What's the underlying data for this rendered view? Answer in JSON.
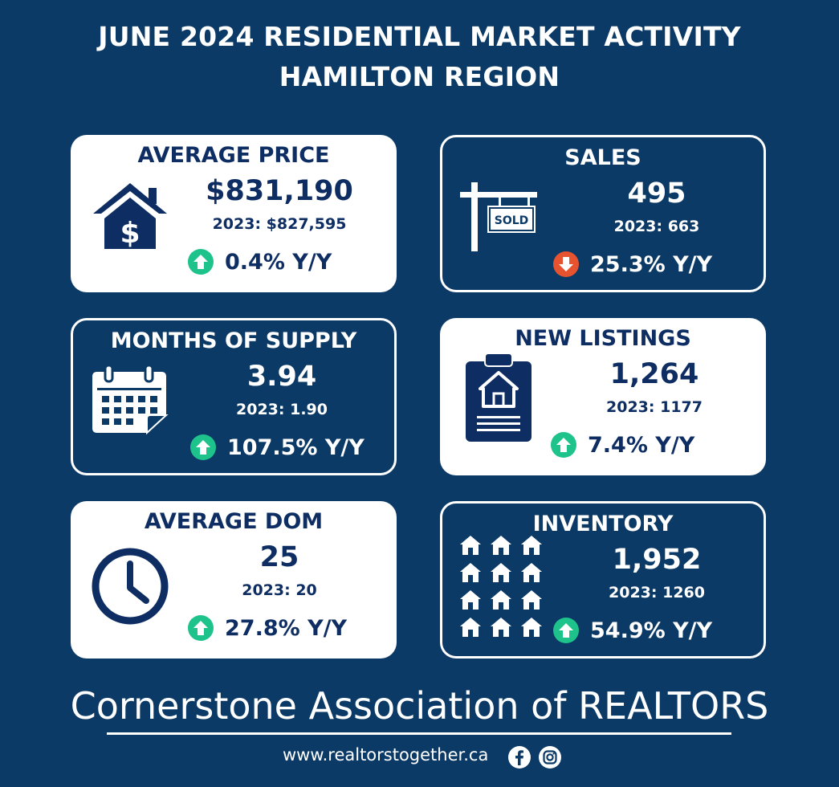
{
  "header": {
    "line1": "JUNE 2024 RESIDENTIAL MARKET ACTIVITY",
    "line2": "HAMILTON REGION"
  },
  "colors": {
    "background": "#0c3a66",
    "text_dark": "#0e2e63",
    "up_arrow": "#1ec28b",
    "down_arrow": "#e8532f"
  },
  "cards": {
    "average_price": {
      "title": "AVERAGE PRICE",
      "value": "$831,190",
      "previous": "2023: $827,595",
      "change": "0.4% Y/Y",
      "direction": "up",
      "icon": "house-dollar-icon"
    },
    "sales": {
      "title": "SALES",
      "value": "495",
      "previous": "2023: 663",
      "change": "25.3% Y/Y",
      "direction": "down",
      "icon": "sold-sign-icon",
      "sign_text": "SOLD"
    },
    "months_of_supply": {
      "title": "MONTHS OF SUPPLY",
      "value": "3.94",
      "previous": "2023: 1.90",
      "change": "107.5% Y/Y",
      "direction": "up",
      "icon": "calendar-icon"
    },
    "new_listings": {
      "title": "NEW LISTINGS",
      "value": "1,264",
      "previous": "2023: 1177",
      "change": "7.4% Y/Y",
      "direction": "up",
      "icon": "clipboard-house-icon"
    },
    "average_dom": {
      "title": "AVERAGE DOM",
      "value": "25",
      "previous": "2023: 20",
      "change": "27.8% Y/Y",
      "direction": "up",
      "icon": "clock-icon"
    },
    "inventory": {
      "title": "INVENTORY",
      "value": "1,952",
      "previous": "2023: 1260",
      "change": "54.9% Y/Y",
      "direction": "up",
      "icon": "houses-grid-icon"
    }
  },
  "footer": {
    "organization": "Cornerstone Association of REALTORS",
    "website": "www.realtorstogether.ca",
    "social_icons": [
      "facebook-icon",
      "instagram-icon"
    ]
  }
}
